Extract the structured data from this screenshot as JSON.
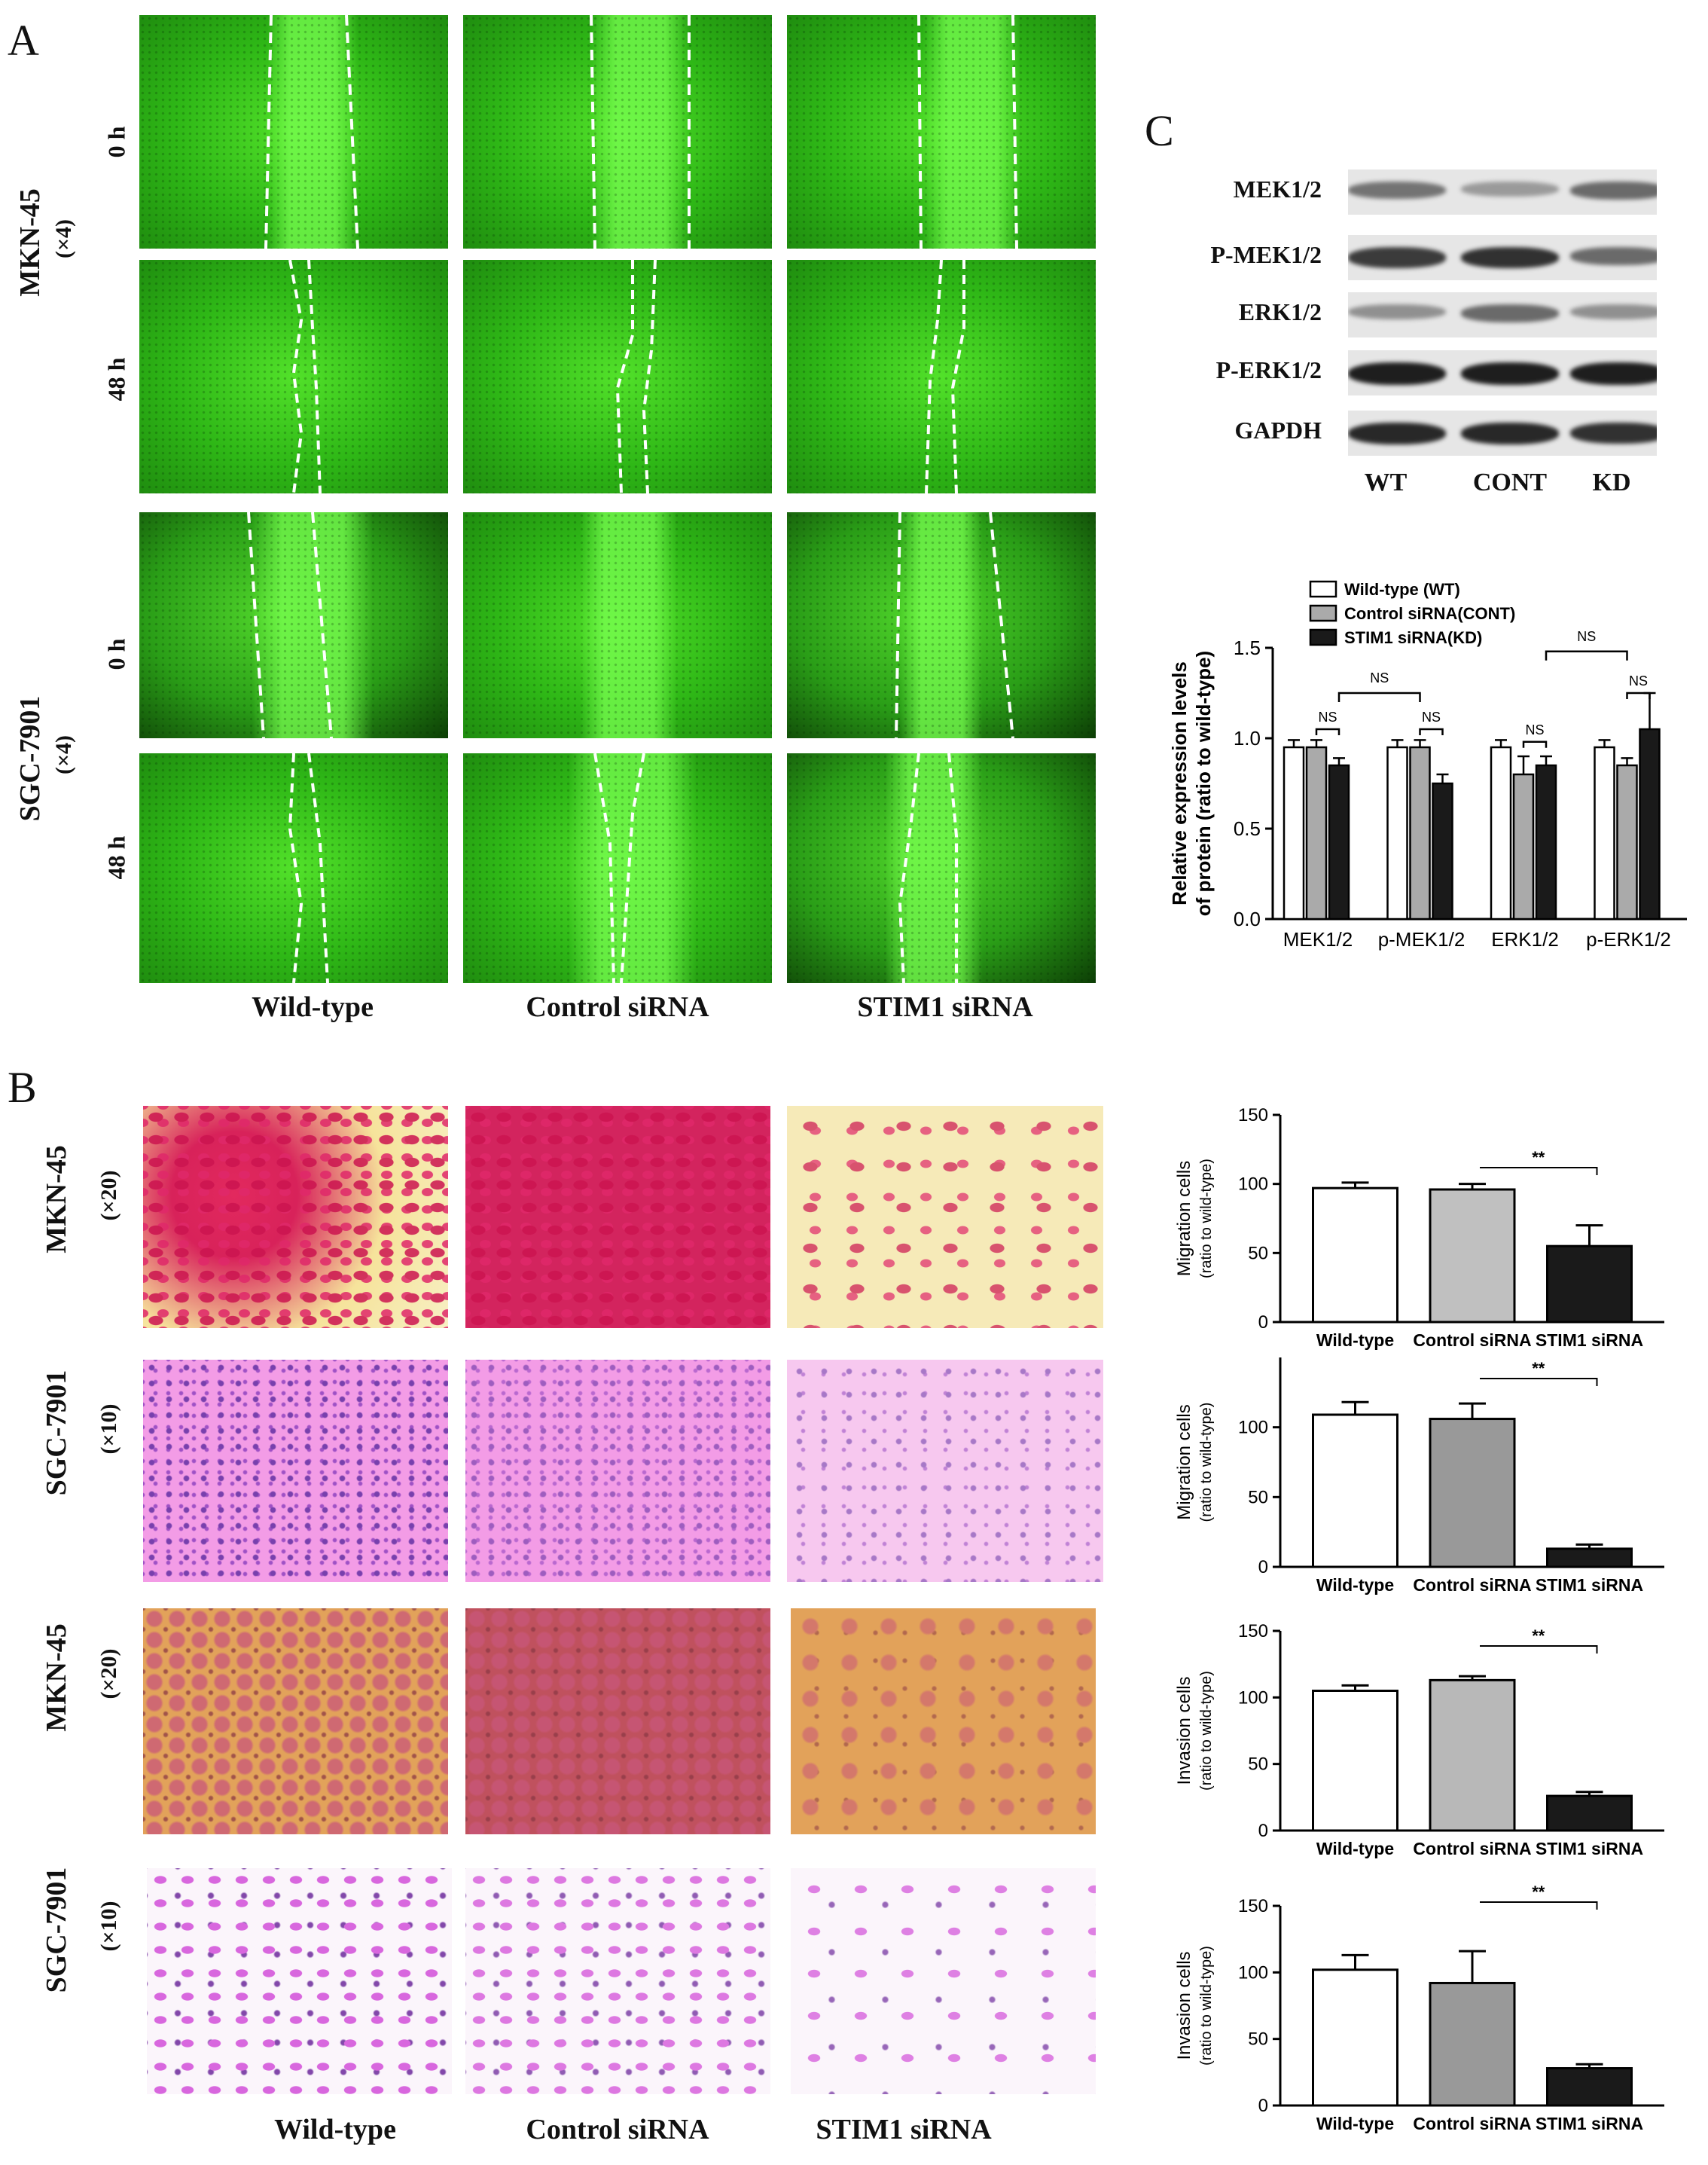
{
  "panelA": {
    "letter": "A",
    "rows": [
      {
        "cell": "MKN-45",
        "mag": "(×4)",
        "times": [
          "0 h",
          "48 h"
        ]
      },
      {
        "cell": "SGC-7901",
        "mag": "(×4)",
        "times": [
          "0 h",
          "48 h"
        ]
      }
    ],
    "columns": [
      "Wild-type",
      "Control siRNA",
      "STIM1 siRNA"
    ]
  },
  "panelB": {
    "letter": "B",
    "rows": [
      {
        "cell": "MKN-45",
        "mag": "(×20)"
      },
      {
        "cell": "SGC-7901",
        "mag": "(×10)"
      },
      {
        "cell": "MKN-45",
        "mag": "(×20)"
      },
      {
        "cell": "SGC-7901",
        "mag": "(×10)"
      }
    ],
    "columns": [
      "Wild-type",
      "Control siRNA",
      "STIM1 siRNA"
    ]
  },
  "panelC": {
    "letter": "C",
    "blot_labels": [
      "MEK1/2",
      "P-MEK1/2",
      "ERK1/2",
      "P-ERK1/2",
      "GAPDH"
    ],
    "lane_labels": [
      "WT",
      "CONT",
      "KD"
    ],
    "band_intensity": [
      [
        0.55,
        0.35,
        0.6
      ],
      [
        0.85,
        0.9,
        0.6
      ],
      [
        0.4,
        0.6,
        0.4
      ],
      [
        1.0,
        1.0,
        1.0
      ],
      [
        0.95,
        0.95,
        0.9
      ]
    ]
  },
  "colors": {
    "white_bar": "#ffffff",
    "grey_bar": "#aaaaaa",
    "black_bar": "#1a1a1a"
  },
  "chart_data": [
    {
      "type": "bar",
      "ylabel": "Relative expression levels of protein (ratio to wild-type)",
      "categories": [
        "MEK1/2",
        "p-MEK1/2",
        "ERK1/2",
        "p-ERK1/2"
      ],
      "series": [
        {
          "name": "Wild-type (WT)",
          "values": [
            0.95,
            0.95,
            0.95,
            0.95
          ],
          "errors": [
            0.04,
            0.04,
            0.04,
            0.04
          ]
        },
        {
          "name": "Control siRNA(CONT)",
          "values": [
            0.95,
            0.95,
            0.8,
            0.85
          ],
          "errors": [
            0.04,
            0.04,
            0.1,
            0.04
          ]
        },
        {
          "name": "STIM1 siRNA(KD)",
          "values": [
            0.85,
            0.75,
            0.85,
            1.05
          ],
          "errors": [
            0.04,
            0.05,
            0.05,
            0.2
          ]
        }
      ],
      "ylim": [
        0,
        1.5
      ],
      "yticks": [
        "0.0",
        "0.5",
        "1.0",
        "1.5"
      ],
      "annotations": [
        "NS",
        "NS",
        "NS",
        "NS",
        "NS",
        "NS"
      ],
      "legend": "top-left"
    },
    {
      "type": "bar",
      "ylabel": "Migration cells (ratio to wild-type)",
      "categories": [
        "Wild-type",
        "Control siRNA",
        "STIM1 siRNA"
      ],
      "values": [
        97,
        96,
        55
      ],
      "errors": [
        4,
        4,
        15
      ],
      "ylim": [
        0,
        150
      ],
      "yticks": [
        "0",
        "50",
        "100",
        "150"
      ],
      "annotation": "**"
    },
    {
      "type": "bar",
      "ylabel": "Migration cells (ratio to wild-type)",
      "categories": [
        "Wild-type",
        "Control siRNA",
        "STIM1 siRNA"
      ],
      "values": [
        109,
        106,
        13
      ],
      "errors": [
        9,
        11,
        3
      ],
      "ylim": [
        0,
        150
      ],
      "yticks": [
        "0",
        "50",
        "100"
      ],
      "annotation": "**"
    },
    {
      "type": "bar",
      "ylabel": "Invasion cells (ratio to wild-type)",
      "categories": [
        "Wild-type",
        "Control siRNA",
        "STIM1 siRNA"
      ],
      "values": [
        105,
        113,
        26
      ],
      "errors": [
        4,
        3,
        3
      ],
      "ylim": [
        0,
        150
      ],
      "yticks": [
        "0",
        "50",
        "100",
        "150"
      ],
      "annotation": "**"
    },
    {
      "type": "bar",
      "ylabel": "Invasion cells (ratio to wild-type)",
      "categories": [
        "Wild-type",
        "Control siRNA",
        "STIM1 siRNA"
      ],
      "values": [
        102,
        92,
        28
      ],
      "errors": [
        11,
        24,
        3
      ],
      "ylim": [
        0,
        150
      ],
      "yticks": [
        "0",
        "50",
        "100",
        "150"
      ],
      "annotation": "**"
    }
  ]
}
